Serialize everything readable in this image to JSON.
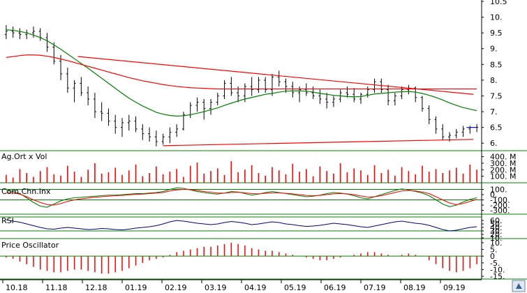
{
  "chart_data": [
    {
      "type": "line",
      "panel": "price",
      "title": "",
      "x_labels": [
        "10.18",
        "11.18",
        "12.18",
        "01.19",
        "02.19",
        "03.19",
        "04.19",
        "05.19",
        "06.19",
        "07.19",
        "08.19",
        "09.19"
      ],
      "ylim": [
        5.85,
        10.5
      ],
      "y_ticks": [
        "6.",
        "6.5",
        "7.",
        "7.5",
        "8.",
        "8.5",
        "9.",
        "9.5",
        "10.",
        "10.5"
      ],
      "y_tick_values": [
        6.0,
        6.5,
        7.0,
        7.5,
        8.0,
        8.5,
        9.0,
        9.5,
        10.0,
        10.5
      ],
      "grid": false,
      "series": [
        {
          "kind": "ohlc",
          "color": "#000000",
          "values": [
            [
              9.45,
              9.75,
              9.3,
              9.55
            ],
            [
              9.55,
              9.7,
              9.35,
              9.5
            ],
            [
              9.5,
              9.65,
              9.3,
              9.45
            ],
            [
              9.45,
              9.6,
              9.3,
              9.5
            ],
            [
              9.5,
              9.7,
              9.35,
              9.55
            ],
            [
              9.55,
              9.65,
              9.25,
              9.35
            ],
            [
              9.35,
              9.5,
              8.9,
              9.05
            ],
            [
              9.05,
              9.2,
              8.5,
              8.6
            ],
            [
              8.6,
              8.8,
              8.0,
              8.2
            ],
            [
              8.2,
              8.4,
              7.6,
              7.75
            ],
            [
              7.75,
              8.0,
              7.3,
              7.9
            ],
            [
              7.9,
              8.1,
              7.5,
              7.6
            ],
            [
              7.6,
              7.8,
              7.2,
              7.4
            ],
            [
              7.4,
              7.6,
              6.8,
              7.0
            ],
            [
              7.0,
              7.3,
              6.7,
              6.95
            ],
            [
              6.95,
              7.1,
              6.55,
              6.7
            ],
            [
              6.7,
              6.9,
              6.3,
              6.5
            ],
            [
              6.5,
              6.8,
              6.2,
              6.65
            ],
            [
              6.65,
              6.9,
              6.4,
              6.7
            ],
            [
              6.7,
              6.85,
              6.35,
              6.45
            ],
            [
              6.45,
              6.6,
              6.1,
              6.3
            ],
            [
              6.3,
              6.5,
              6.05,
              6.2
            ],
            [
              6.2,
              6.4,
              5.9,
              6.05
            ],
            [
              6.05,
              6.3,
              5.95,
              6.2
            ],
            [
              6.2,
              6.5,
              6.0,
              6.35
            ],
            [
              6.35,
              6.6,
              6.2,
              6.45
            ],
            [
              6.45,
              7.0,
              6.4,
              6.9
            ],
            [
              6.9,
              7.3,
              6.8,
              7.2
            ],
            [
              7.2,
              7.45,
              7.0,
              7.3
            ],
            [
              7.3,
              7.4,
              6.75,
              7.1
            ],
            [
              7.1,
              7.4,
              6.9,
              7.3
            ],
            [
              7.3,
              7.6,
              7.2,
              7.5
            ],
            [
              7.5,
              8.0,
              7.4,
              7.9
            ],
            [
              7.9,
              8.1,
              7.5,
              7.6
            ],
            [
              7.6,
              7.8,
              7.3,
              7.5
            ],
            [
              7.5,
              7.9,
              7.3,
              7.8
            ],
            [
              7.8,
              8.1,
              7.5,
              7.7
            ],
            [
              7.7,
              8.1,
              7.6,
              8.0
            ],
            [
              8.0,
              8.1,
              7.6,
              7.7
            ],
            [
              7.7,
              8.2,
              7.5,
              8.1
            ],
            [
              8.1,
              8.3,
              7.8,
              7.95
            ],
            [
              7.95,
              8.05,
              7.6,
              7.8
            ],
            [
              7.8,
              7.95,
              7.45,
              7.6
            ],
            [
              7.6,
              7.8,
              7.3,
              7.7
            ],
            [
              7.7,
              7.9,
              7.5,
              7.6
            ],
            [
              7.6,
              7.8,
              7.4,
              7.5
            ],
            [
              7.5,
              7.7,
              7.25,
              7.4
            ],
            [
              7.4,
              7.6,
              7.1,
              7.3
            ],
            [
              7.3,
              7.5,
              7.15,
              7.4
            ],
            [
              7.4,
              7.7,
              7.3,
              7.6
            ],
            [
              7.6,
              7.8,
              7.45,
              7.55
            ],
            [
              7.55,
              7.75,
              7.3,
              7.4
            ],
            [
              7.4,
              7.6,
              7.25,
              7.55
            ],
            [
              7.55,
              7.8,
              7.45,
              7.7
            ],
            [
              7.7,
              8.05,
              7.6,
              7.95
            ],
            [
              7.95,
              8.05,
              7.6,
              7.7
            ],
            [
              7.7,
              7.85,
              7.2,
              7.35
            ],
            [
              7.35,
              7.6,
              7.2,
              7.5
            ],
            [
              7.5,
              7.8,
              7.4,
              7.7
            ],
            [
              7.7,
              7.85,
              7.55,
              7.75
            ],
            [
              7.75,
              7.8,
              7.3,
              7.45
            ],
            [
              7.45,
              7.5,
              7.0,
              7.1
            ],
            [
              7.1,
              7.2,
              6.6,
              6.75
            ],
            [
              6.75,
              6.85,
              6.3,
              6.45
            ],
            [
              6.45,
              6.6,
              6.1,
              6.2
            ],
            [
              6.2,
              6.35,
              6.05,
              6.25
            ],
            [
              6.25,
              6.45,
              6.15,
              6.35
            ],
            [
              6.35,
              6.55,
              6.2,
              6.45
            ],
            [
              6.45,
              6.55,
              6.3,
              6.5
            ],
            [
              6.5,
              6.6,
              6.35,
              6.5
            ]
          ]
        },
        {
          "kind": "line",
          "color": "#008000",
          "values": [
            9.6,
            9.58,
            9.55,
            9.5,
            9.43,
            9.35,
            9.25,
            9.12,
            8.98,
            8.83,
            8.68,
            8.53,
            8.38,
            8.22,
            8.06,
            7.9,
            7.74,
            7.58,
            7.43,
            7.3,
            7.18,
            7.08,
            6.98,
            6.92,
            6.88,
            6.86,
            6.87,
            6.9,
            6.95,
            7.0,
            7.06,
            7.12,
            7.2,
            7.27,
            7.34,
            7.4,
            7.45,
            7.5,
            7.55,
            7.58,
            7.62,
            7.65,
            7.66,
            7.66,
            7.65,
            7.62,
            7.58,
            7.55,
            7.52,
            7.5,
            7.48,
            7.47,
            7.48,
            7.52,
            7.56,
            7.58,
            7.6,
            7.62,
            7.63,
            7.64,
            7.62,
            7.58,
            7.52,
            7.45,
            7.37,
            7.28,
            7.2,
            7.13,
            7.08,
            7.03
          ]
        },
        {
          "kind": "line",
          "color": "#ff0000",
          "values": [
            8.72,
            8.75,
            8.78,
            8.8,
            8.8,
            8.79,
            8.76,
            8.72,
            8.67,
            8.62,
            8.56,
            8.5,
            8.44,
            8.38,
            8.32,
            8.26,
            8.2,
            8.14,
            8.08,
            8.03,
            7.98,
            7.94,
            7.9,
            7.86,
            7.83,
            7.8,
            7.78,
            7.76,
            7.75,
            7.74,
            7.73,
            7.72,
            7.72,
            7.72,
            7.72,
            7.72,
            7.72,
            7.72,
            7.72,
            7.72,
            7.72,
            7.72,
            7.72,
            7.72,
            7.72,
            7.72,
            7.72,
            7.72,
            7.72,
            7.72,
            7.72,
            7.72,
            7.72,
            7.72,
            7.72,
            7.72,
            7.72,
            7.72,
            7.72,
            7.72,
            7.72,
            7.72,
            7.72,
            7.72,
            7.72,
            7.72,
            7.72,
            7.72,
            7.72,
            7.72
          ]
        },
        {
          "kind": "trendline",
          "color": "#ff0000",
          "from": [
            10.5,
            8.75
          ],
          "to": [
            68.5,
            7.55
          ]
        },
        {
          "kind": "trendline",
          "color": "#ff0000",
          "from": [
            23,
            5.92
          ],
          "to": [
            68.5,
            6.12
          ]
        },
        {
          "kind": "trendline",
          "color": "#0000ff",
          "from": [
            67.5,
            6.5
          ],
          "to": [
            68.8,
            6.5
          ]
        }
      ]
    },
    {
      "type": "bar",
      "panel": "volume",
      "title": "Ag.Ort x Vol",
      "ylim": [
        0,
        470
      ],
      "y_ticks": [
        "400. M",
        "300. M",
        "200. M",
        "100. M"
      ],
      "y_tick_values": [
        400,
        300,
        200,
        100
      ],
      "series": [
        {
          "name": "Vol",
          "color": "#ff0000",
          "values": [
            120,
            80,
            210,
            150,
            90,
            180,
            240,
            130,
            110,
            260,
            170,
            90,
            200,
            300,
            140,
            160,
            230,
            120,
            190,
            280,
            100,
            150,
            250,
            130,
            170,
            210,
            90,
            260,
            310,
            140,
            180,
            220,
            120,
            330,
            160,
            200,
            270,
            150,
            110,
            240,
            190,
            130,
            290,
            170,
            210,
            100,
            250,
            180,
            140,
            300,
            160,
            220,
            190,
            120,
            270,
            150,
            200,
            110,
            240,
            180,
            130,
            260,
            170,
            210,
            150,
            190,
            230,
            140,
            280,
            200
          ]
        }
      ]
    },
    {
      "type": "line",
      "panel": "cci",
      "title": "Com.Chn.Inx",
      "ylim": [
        -360,
        160
      ],
      "y_ticks": [
        "100.",
        "0.",
        "-100.",
        "-200.",
        "-300."
      ],
      "y_tick_values": [
        100,
        0,
        -100,
        -200,
        -300
      ],
      "series": [
        {
          "color": "#008000",
          "values": [
            80,
            60,
            20,
            -60,
            -150,
            -220,
            -240,
            -180,
            -120,
            -80,
            -60,
            -50,
            -40,
            -30,
            -20,
            -10,
            -10,
            0,
            10,
            20,
            20,
            30,
            40,
            60,
            100,
            130,
            120,
            90,
            60,
            40,
            20,
            10,
            30,
            60,
            50,
            20,
            -10,
            10,
            40,
            60,
            40,
            20,
            0,
            -20,
            -40,
            -30,
            -10,
            20,
            40,
            30,
            10,
            -20,
            -60,
            -80,
            -40,
            0,
            40,
            80,
            110,
            90,
            60,
            30,
            -20,
            -100,
            -180,
            -230,
            -200,
            -140,
            -90,
            -60
          ]
        },
        {
          "color": "#ff0000",
          "values": [
            40,
            30,
            10,
            -40,
            -100,
            -150,
            -190,
            -200,
            -170,
            -130,
            -100,
            -80,
            -65,
            -50,
            -40,
            -30,
            -20,
            -15,
            -5,
            5,
            10,
            20,
            30,
            40,
            70,
            90,
            100,
            95,
            80,
            60,
            45,
            30,
            30,
            40,
            45,
            35,
            20,
            15,
            25,
            35,
            35,
            25,
            15,
            0,
            -15,
            -20,
            -15,
            0,
            15,
            20,
            15,
            0,
            -25,
            -45,
            -40,
            -20,
            10,
            40,
            70,
            80,
            70,
            50,
            20,
            -40,
            -100,
            -160,
            -190,
            -170,
            -130,
            -90
          ]
        }
      ],
      "reference_lines": [
        100,
        -100
      ]
    },
    {
      "type": "line",
      "panel": "rsi",
      "title": "RSI",
      "ylim": [
        8,
        72
      ],
      "y_ticks": [
        "60.",
        "50.",
        "40.",
        "30.",
        "20.",
        "10."
      ],
      "y_tick_values": [
        60,
        50,
        40,
        30,
        20,
        10
      ],
      "series": [
        {
          "color": "#000080",
          "values": [
            62,
            58,
            55,
            50,
            45,
            40,
            36,
            35,
            38,
            40,
            38,
            36,
            34,
            35,
            37,
            36,
            34,
            33,
            35,
            38,
            40,
            42,
            45,
            50,
            56,
            60,
            58,
            55,
            52,
            50,
            48,
            50,
            54,
            57,
            55,
            52,
            48,
            50,
            53,
            56,
            54,
            50,
            48,
            45,
            43,
            44,
            46,
            49,
            52,
            50,
            48,
            45,
            42,
            40,
            44,
            48,
            52,
            56,
            58,
            55,
            52,
            50,
            46,
            40,
            34,
            30,
            32,
            36,
            40,
            42
          ]
        }
      ],
      "reference_lines": [
        70,
        30
      ]
    },
    {
      "type": "bar",
      "panel": "oscillator",
      "title": "Price Oscillator",
      "ylim": [
        -16,
        11
      ],
      "y_ticks": [
        "10.",
        "5.",
        "0",
        "-5.",
        "-10.",
        "-15."
      ],
      "y_tick_values": [
        10,
        5,
        0,
        -5,
        -10,
        -15
      ],
      "series": [
        {
          "color": "#ff0000",
          "values": [
            -1,
            -2,
            -4,
            -6,
            -8,
            -10,
            -11,
            -12,
            -12,
            -11,
            -10,
            -10,
            -11,
            -12,
            -13,
            -13,
            -12,
            -11,
            -9,
            -7,
            -5,
            -3,
            -2,
            -1,
            1,
            3,
            4,
            5,
            6,
            7,
            7,
            8,
            9,
            10,
            9,
            8,
            6,
            5,
            4,
            4,
            3,
            2,
            1,
            0,
            -1,
            -2,
            -3,
            -3,
            -2,
            -1,
            0,
            1,
            2,
            3,
            3,
            2,
            1,
            0,
            1,
            2,
            1,
            0,
            -3,
            -6,
            -9,
            -11,
            -12,
            -11,
            -9,
            -6
          ]
        }
      ]
    }
  ]
}
